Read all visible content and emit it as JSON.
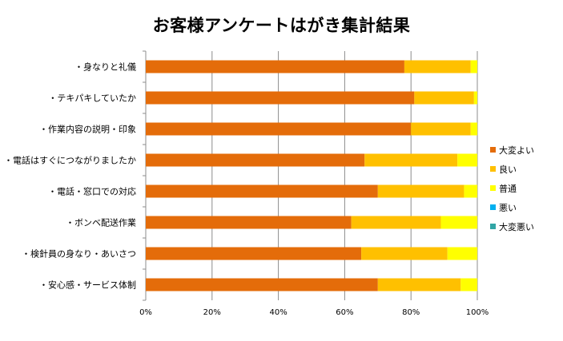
{
  "chart_data": {
    "type": "bar",
    "orientation": "horizontal",
    "stacked": "percent",
    "title": "お客様アンケートはがき集計結果",
    "categories": [
      "・身なりと礼儀",
      "・テキパキしていたか",
      "・作業内容の説明・印象",
      "・電話はすぐにつながりましたか",
      "・電話・窓口での対応",
      "・ボンベ配送作業",
      "・検針員の身なり・あいさつ",
      "・安心感・サービス体制"
    ],
    "series": [
      {
        "name": "大変よい",
        "color": "#E46C0A",
        "values": [
          78,
          81,
          80,
          66,
          70,
          62,
          65,
          70
        ]
      },
      {
        "name": "良い",
        "color": "#FFC000",
        "values": [
          20,
          18,
          18,
          28,
          26,
          27,
          26,
          25
        ]
      },
      {
        "name": "普通",
        "color": "#FFFF00",
        "values": [
          2,
          1,
          2,
          6,
          4,
          11,
          9,
          5
        ]
      },
      {
        "name": "悪い",
        "color": "#00B0F0",
        "values": [
          0,
          0,
          0,
          0,
          0,
          0,
          0,
          0
        ]
      },
      {
        "name": "大変悪い",
        "color": "#31A5A5",
        "values": [
          0,
          0,
          0,
          0,
          0,
          0,
          0,
          0
        ]
      }
    ],
    "xlim": [
      0,
      100
    ],
    "xticks": [
      "0%",
      "20%",
      "40%",
      "60%",
      "80%",
      "100%"
    ],
    "grid": true,
    "legend": "right"
  }
}
